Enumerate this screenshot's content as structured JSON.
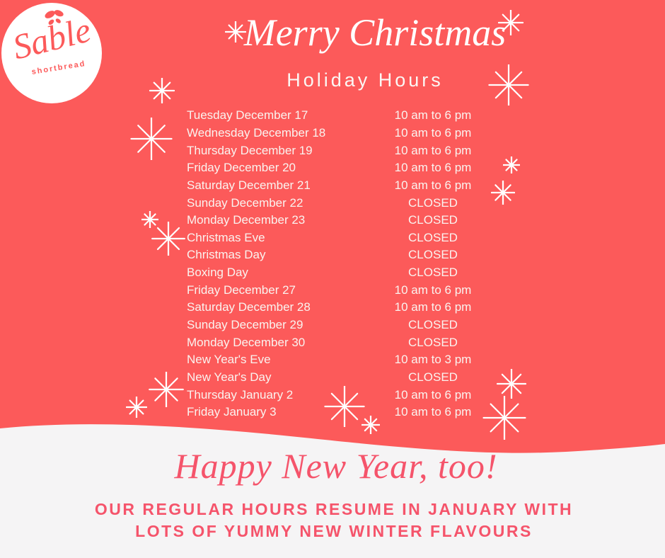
{
  "page": {
    "background_color": "#FC5A5A",
    "footer_background_color": "#F5F4F5"
  },
  "logo": {
    "brand": "Sable",
    "tagline": "shortbread"
  },
  "header": {
    "title": "Merry Christmas",
    "subtitle": "Holiday Hours"
  },
  "schedule": {
    "rows": [
      {
        "day": "Tuesday December 17",
        "hours": "10 am to 6 pm"
      },
      {
        "day": "Wednesday December 18",
        "hours": "10 am to 6 pm"
      },
      {
        "day": "Thursday December 19",
        "hours": "10 am to 6 pm"
      },
      {
        "day": "Friday December 20",
        "hours": "10 am to 6 pm"
      },
      {
        "day": "Saturday December 21",
        "hours": "10 am to 6 pm"
      },
      {
        "day": "Sunday December 22",
        "hours": "CLOSED"
      },
      {
        "day": "Monday December 23",
        "hours": "CLOSED"
      },
      {
        "day": "Christmas Eve",
        "hours": "CLOSED"
      },
      {
        "day": "Christmas Day",
        "hours": "CLOSED"
      },
      {
        "day": "Boxing Day",
        "hours": "CLOSED"
      },
      {
        "day": "Friday December 27",
        "hours": "10 am to 6 pm"
      },
      {
        "day": "Saturday December 28",
        "hours": "10 am to  6 pm"
      },
      {
        "day": "Sunday December 29",
        "hours": "CLOSED"
      },
      {
        "day": "Monday December 30",
        "hours": "CLOSED"
      },
      {
        "day": "New Year's Eve",
        "hours": "10 am to 3 pm"
      },
      {
        "day": "New Year's Day",
        "hours": "CLOSED"
      },
      {
        "day": "Thursday January 2",
        "hours": "10 am to 6 pm"
      },
      {
        "day": "Friday January 3",
        "hours": "10 am to 6 pm"
      }
    ]
  },
  "footer": {
    "headline": "Happy New Year, too!",
    "message_line1": "OUR REGULAR HOURS RESUME IN JANUARY WITH",
    "message_line2": "LOTS OF YUMMY NEW WINTER FLAVOURS",
    "text_color": "#F5546B"
  },
  "decorations": {
    "sparkle_icon_color": "#FFFFFF"
  }
}
